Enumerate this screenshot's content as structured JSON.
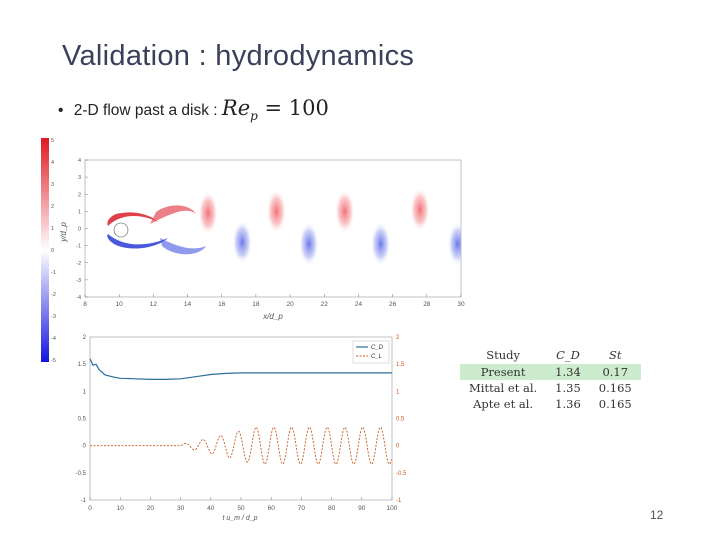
{
  "slide": {
    "title": "Validation : hydrodynamics",
    "bullet_text": "2-D flow past a disk :",
    "bullet_math_lhs": "Re",
    "bullet_math_sub": "p",
    "bullet_math_rhs": " = 100",
    "page_number": "12"
  },
  "colors": {
    "title": "#3a3f5a",
    "positive": "#d9202b",
    "negative": "#2a3cd6",
    "cd_line": "#2a6f9a",
    "cl_line": "#c75a1e",
    "highlight": "#cdeccd"
  },
  "table": {
    "headers": [
      "Study",
      "C_D",
      "St"
    ],
    "rows": [
      {
        "study": "Present",
        "cd": "1.34",
        "st": "0.17",
        "highlight": true
      },
      {
        "study": "Mittal et al.",
        "cd": "1.35",
        "st": "0.165",
        "highlight": false
      },
      {
        "study": "Apte et al.",
        "cd": "1.36",
        "st": "0.165",
        "highlight": false
      }
    ]
  },
  "chart_data": [
    {
      "type": "heatmap",
      "title": "",
      "xlabel": "x/d_p",
      "ylabel": "y/d_p",
      "x_ticks": [
        "8",
        "10",
        "12",
        "14",
        "16",
        "18",
        "20",
        "22",
        "24",
        "26",
        "28",
        "30"
      ],
      "y_ticks": [
        "4",
        "3",
        "2",
        "1",
        "0",
        "-1",
        "-2",
        "-3",
        "-4"
      ],
      "xlim": [
        8,
        30
      ],
      "ylim": [
        -4,
        4
      ],
      "colorbar_ticks": [
        "5",
        "4",
        "3",
        "2",
        "1",
        "0",
        "-1",
        "-2",
        "-3",
        "-4",
        "-5"
      ],
      "vortices": [
        {
          "x": 15.2,
          "y": 0.9,
          "sign": 1
        },
        {
          "x": 17.2,
          "y": -0.8,
          "sign": -1
        },
        {
          "x": 19.2,
          "y": 1.0,
          "sign": 1
        },
        {
          "x": 21.1,
          "y": -0.9,
          "sign": -1
        },
        {
          "x": 23.2,
          "y": 1.0,
          "sign": 1
        },
        {
          "x": 25.3,
          "y": -0.9,
          "sign": -1
        },
        {
          "x": 27.6,
          "y": 1.1,
          "sign": 1
        },
        {
          "x": 29.8,
          "y": -0.9,
          "sign": -1
        }
      ]
    },
    {
      "type": "line",
      "title": "",
      "xlabel": "t u_m / d_p",
      "ylabel_left": "C_D",
      "ylabel_right": "C_L",
      "x_ticks": [
        "0",
        "10",
        "20",
        "30",
        "40",
        "50",
        "60",
        "70",
        "80",
        "90",
        "100"
      ],
      "y_left_ticks": [
        "2",
        "1.5",
        "1",
        "0.5",
        "0",
        "-0.5",
        "-1"
      ],
      "y_right_ticks": [
        "2",
        "1.5",
        "1",
        "0.5",
        "0",
        "-0.5",
        "-1"
      ],
      "xlim": [
        0,
        100
      ],
      "ylim": [
        -1,
        2
      ],
      "legend": [
        "C_D",
        "C_L"
      ],
      "legend_position": "top-right",
      "series": [
        {
          "name": "C_D",
          "x": [
            0,
            1,
            2,
            3,
            5,
            8,
            10,
            15,
            20,
            25,
            30,
            35,
            40,
            45,
            50,
            60,
            70,
            80,
            90,
            100
          ],
          "values": [
            1.6,
            1.48,
            1.5,
            1.4,
            1.3,
            1.26,
            1.24,
            1.23,
            1.22,
            1.22,
            1.23,
            1.27,
            1.31,
            1.33,
            1.34,
            1.34,
            1.34,
            1.34,
            1.34,
            1.34
          ]
        },
        {
          "name": "C_L",
          "t_start": 30,
          "t_end": 100,
          "frequency": 0.17,
          "amplitude_final": 0.34,
          "amplitude_start": 0.02
        }
      ]
    }
  ]
}
